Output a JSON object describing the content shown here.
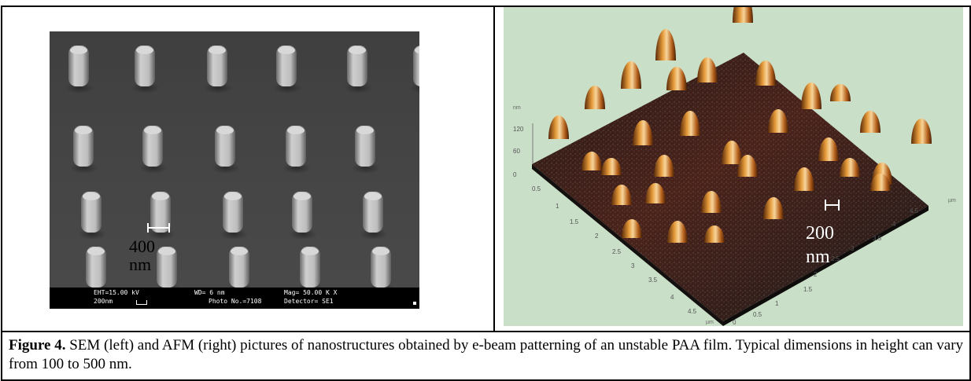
{
  "sem": {
    "info_eht": "EHT=15.00 kV",
    "info_scale": "200nm",
    "info_wd": "WD=   6 nm",
    "info_photo": "Photo No.=7108",
    "info_mag": "Mag= 50.00 K X",
    "info_detector": "Detector= SE1",
    "scale_value": "400",
    "scale_unit": "nm"
  },
  "afm": {
    "z_unit": "nm",
    "z_ticks": [
      "120",
      "60",
      "0"
    ],
    "x_ticks": [
      "0.5",
      "1",
      "1.5",
      "2",
      "2.5",
      "3",
      "3.5",
      "4",
      "4.5"
    ],
    "x_unit": "µm",
    "y_ticks": [
      "0",
      "0.5",
      "1",
      "1.5",
      "2",
      "2.5",
      "3",
      "3.5",
      "4",
      "4.5"
    ],
    "y_unit": "µm",
    "scale_value": "200",
    "scale_unit": "nm"
  },
  "caption": {
    "label": "Figure 4.",
    "text": " SEM (left) and AFM (right)  pictures of nanostructures obtained by e-beam patterning of an unstable PAA film. Typical dimensions in height can vary from 100 to 500 nm."
  }
}
